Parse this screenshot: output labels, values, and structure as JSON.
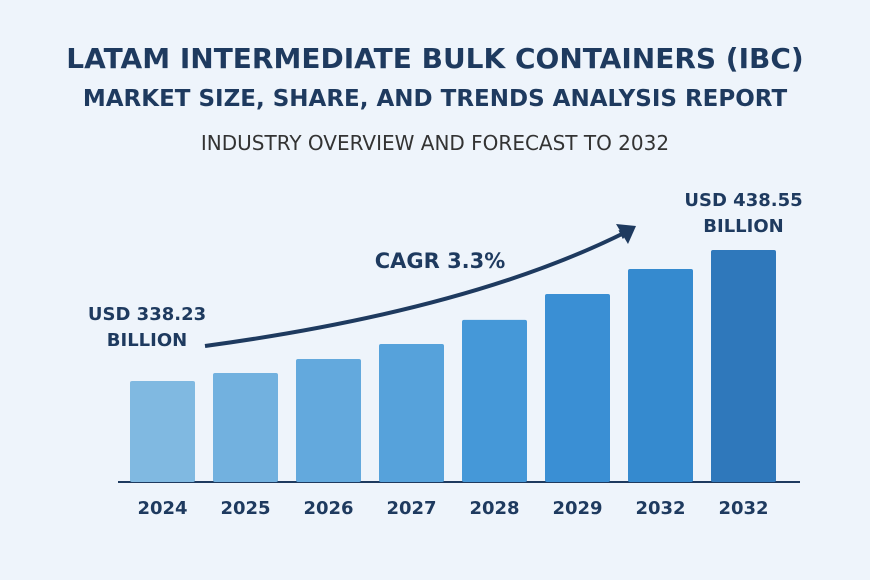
{
  "chart_data": {
    "type": "bar",
    "title": "LATAM INTERMEDIATE BULK CONTAINERS (IBC)",
    "subtitle": "MARKET SIZE, SHARE, AND TRENDS ANALYSIS REPORT",
    "caption": "INDUSTRY OVERVIEW AND FORECAST TO 2032",
    "annotation": "CAGR 3.3%",
    "categories": [
      "2024",
      "2025",
      "2026",
      "2027",
      "2028",
      "2029",
      "2032",
      "2032"
    ],
    "values": [
      338.23,
      344.4,
      355.1,
      366.6,
      385.0,
      404.9,
      424.0,
      438.55
    ],
    "value_labels": [
      "USD 338.23 BILLION",
      null,
      null,
      null,
      null,
      null,
      null,
      "USD 438.55 BILLION"
    ],
    "colors": [
      "#80b9e1",
      "#72b1df",
      "#63a9dd",
      "#56a2db",
      "#4598d8",
      "#3a8fd4",
      "#358acf",
      "#2f78bb"
    ]
  }
}
